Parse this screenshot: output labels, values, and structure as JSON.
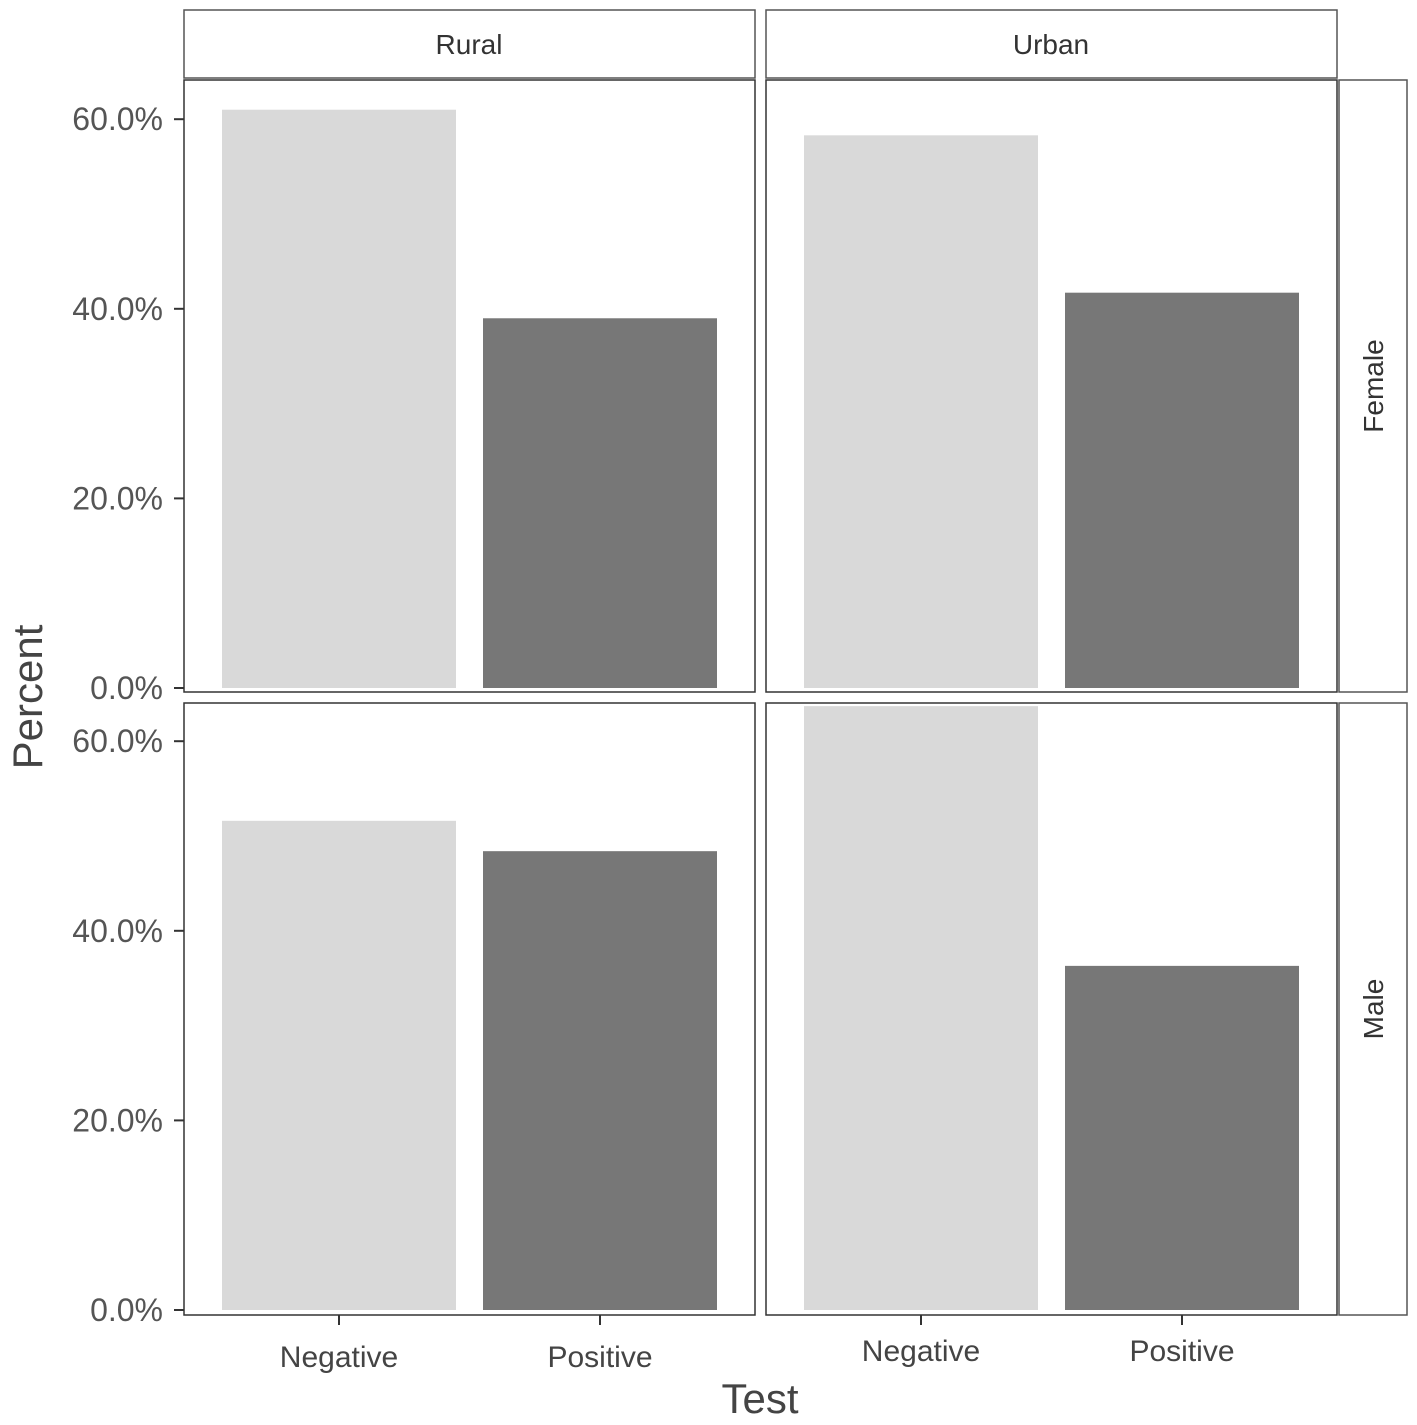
{
  "chart_data": {
    "type": "bar",
    "facets": {
      "columns": [
        "Rural",
        "Urban"
      ],
      "rows": [
        "Female",
        "Male"
      ]
    },
    "categories": [
      "Negative",
      "Positive"
    ],
    "panels": [
      {
        "column": "Rural",
        "row": "Female",
        "values": [
          61.0,
          39.0
        ]
      },
      {
        "column": "Urban",
        "row": "Female",
        "values": [
          58.3,
          41.7
        ]
      },
      {
        "column": "Rural",
        "row": "Male",
        "values": [
          51.6,
          48.4
        ]
      },
      {
        "column": "Urban",
        "row": "Male",
        "values": [
          63.7,
          36.3
        ]
      }
    ],
    "xlabel": "Test",
    "ylabel": "Percent",
    "ylim": [
      0,
      65
    ],
    "yticks": [
      0,
      20,
      40,
      60
    ],
    "ytick_labels": [
      "0.0%",
      "20.0%",
      "40.0%",
      "60.0%"
    ],
    "grid": false,
    "colors": {
      "Negative": "#d9d9d9",
      "Positive": "#777777"
    }
  }
}
